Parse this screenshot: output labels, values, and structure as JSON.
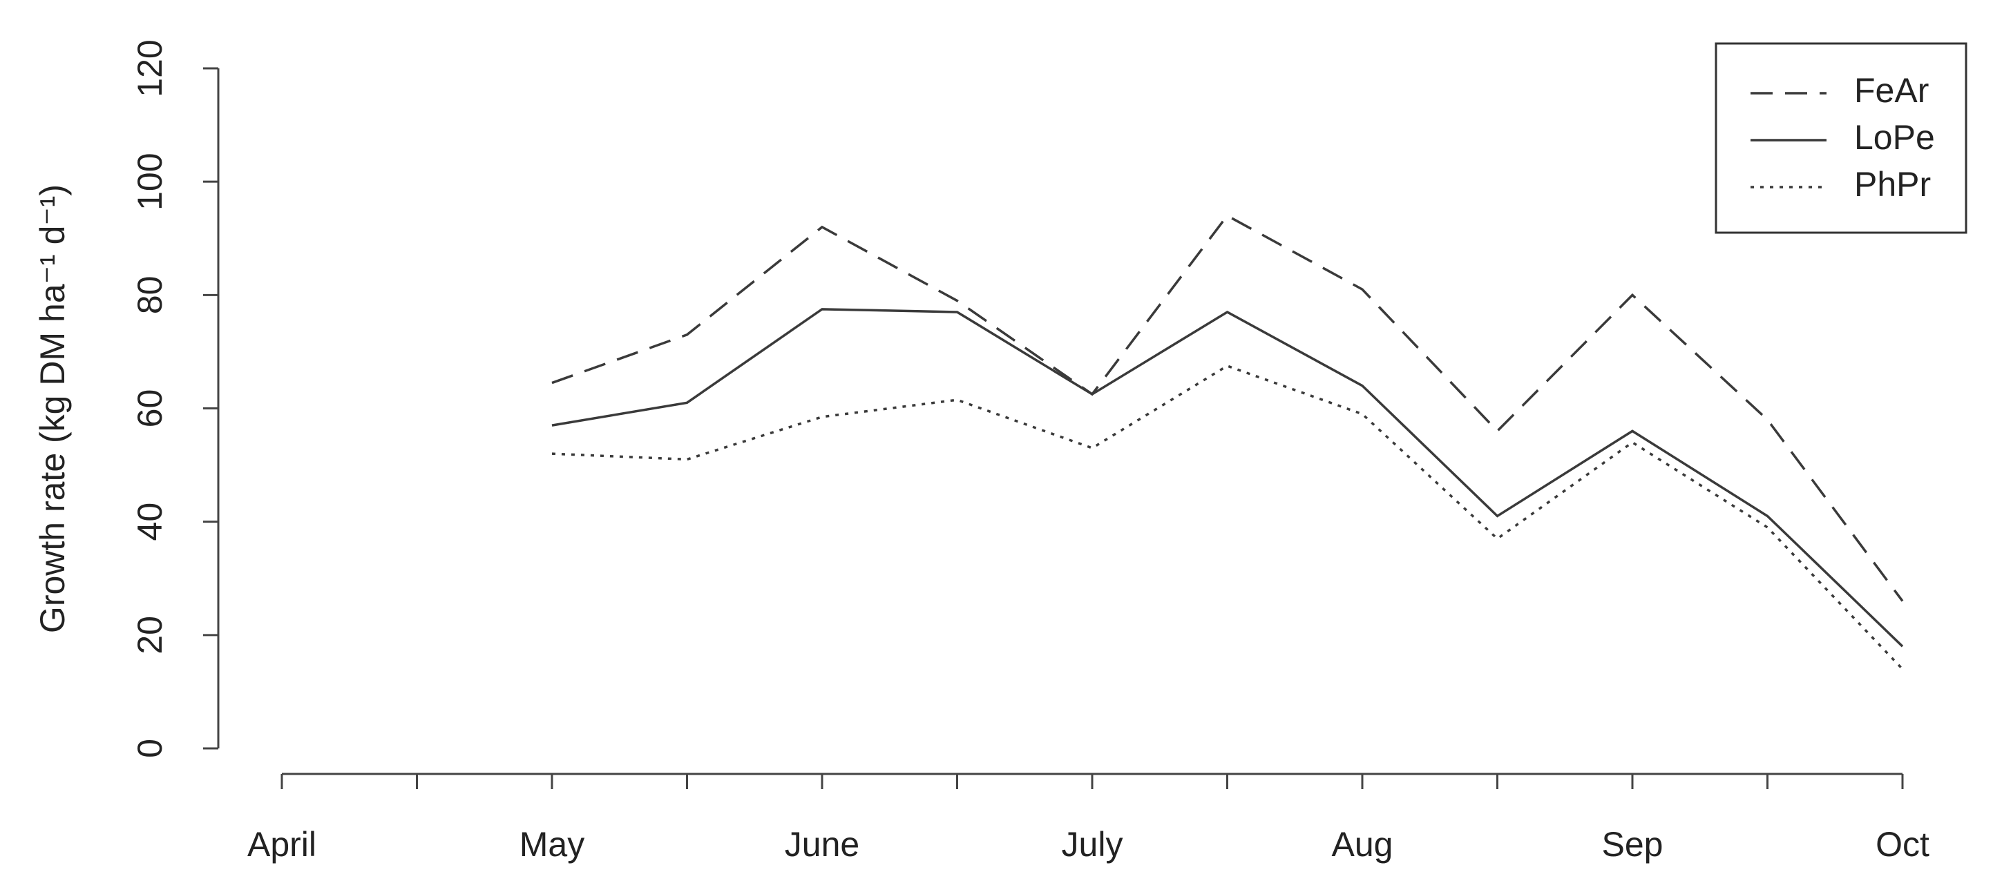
{
  "chart_data": {
    "type": "line",
    "y_label": "Growth rate (kg DM ha⁻¹ d⁻¹)",
    "categories": [
      "April",
      null,
      "May",
      null,
      "June",
      null,
      "July",
      null,
      "Aug",
      null,
      "Sep",
      null,
      "Oct"
    ],
    "series": [
      {
        "name": "FeAr",
        "color": "#3a3a3a",
        "line_style": "dashed",
        "values": [
          null,
          null,
          64.5,
          73,
          92,
          79,
          62.5,
          94,
          81,
          56,
          80,
          58,
          26
        ]
      },
      {
        "name": "LoPe",
        "color": "#3a3a3a",
        "line_style": "solid",
        "values": [
          null,
          null,
          57,
          61,
          77.5,
          77,
          62.5,
          77,
          64,
          41,
          56,
          41,
          18
        ]
      },
      {
        "name": "PhPr",
        "color": "#3a3a3a",
        "line_style": "dotted",
        "values": [
          null,
          null,
          52,
          51,
          58.5,
          61.5,
          53,
          67.5,
          59,
          37,
          54,
          39,
          14
        ]
      }
    ],
    "ylim": [
      0,
      120
    ],
    "yticks": [
      0,
      20,
      40,
      60,
      80,
      100,
      120
    ],
    "legend": "top-right"
  }
}
